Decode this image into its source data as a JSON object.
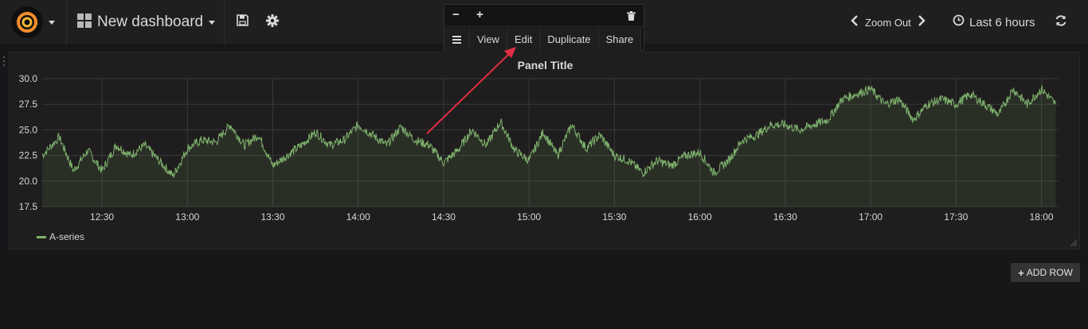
{
  "navbar": {
    "dashboard_title": "New dashboard",
    "zoom_label": "Zoom Out",
    "time_range": "Last 6 hours",
    "icons": {
      "logo": "grafana-logo-icon",
      "dashboard": "dashboard-grid-icon",
      "save": "save-icon",
      "settings": "gear-icon",
      "zoom_prev": "chevron-left-icon",
      "zoom_next": "chevron-right-icon",
      "clock": "clock-icon",
      "refresh": "refresh-icon"
    }
  },
  "panel_menu": {
    "collapse_glyph": "−",
    "expand_glyph": "+",
    "items": [
      "View",
      "Edit",
      "Duplicate",
      "Share"
    ]
  },
  "panel": {
    "title": "Panel Title",
    "legend": "A-series"
  },
  "add_row_label": "ADD ROW",
  "colors": {
    "series": "#7eb26d",
    "annotation_arrow": "#e02f44",
    "background": "#161719",
    "panel_bg": "#1f1d1d"
  },
  "chart_data": {
    "type": "area",
    "y_ticks": [
      "30.0",
      "27.5",
      "25.0",
      "22.5",
      "20.0",
      "17.5"
    ],
    "ylim": [
      17.5,
      30.0
    ],
    "x_ticks": [
      "12:30",
      "13:00",
      "13:30",
      "14:00",
      "14:30",
      "15:00",
      "15:30",
      "16:00",
      "16:30",
      "17:00",
      "17:30",
      "18:00"
    ],
    "x_range_minutes": [
      12.15,
      18.1
    ],
    "grid": true,
    "legend_position": "bottom-left",
    "series": [
      {
        "name": "A-series",
        "x": [
          "12:09",
          "12:15",
          "12:20",
          "12:25",
          "12:30",
          "12:35",
          "12:40",
          "12:45",
          "12:50",
          "12:55",
          "13:00",
          "13:05",
          "13:10",
          "13:15",
          "13:20",
          "13:25",
          "13:30",
          "13:35",
          "13:40",
          "13:45",
          "13:50",
          "13:55",
          "14:00",
          "14:05",
          "14:10",
          "14:15",
          "14:20",
          "14:25",
          "14:30",
          "14:35",
          "14:40",
          "14:45",
          "14:50",
          "14:55",
          "15:00",
          "15:05",
          "15:10",
          "15:15",
          "15:20",
          "15:25",
          "15:30",
          "15:35",
          "15:40",
          "15:45",
          "15:50",
          "15:55",
          "16:00",
          "16:05",
          "16:10",
          "16:15",
          "16:20",
          "16:25",
          "16:30",
          "16:35",
          "16:40",
          "16:45",
          "16:50",
          "16:55",
          "17:00",
          "17:05",
          "17:10",
          "17:15",
          "17:20",
          "17:25",
          "17:30",
          "17:35",
          "17:40",
          "17:45",
          "17:50",
          "17:55",
          "18:00",
          "18:05"
        ],
        "values": [
          22.5,
          24.3,
          21.0,
          23.0,
          21.0,
          23.5,
          22.5,
          23.5,
          22.0,
          20.5,
          23.2,
          24.0,
          23.8,
          25.5,
          23.5,
          24.5,
          21.5,
          22.5,
          23.5,
          24.8,
          23.5,
          24.0,
          25.5,
          24.5,
          23.5,
          25.3,
          24.0,
          23.5,
          21.8,
          23.0,
          25.0,
          23.5,
          25.8,
          23.0,
          22.0,
          24.8,
          22.5,
          25.5,
          23.2,
          24.5,
          22.5,
          22.0,
          20.8,
          22.0,
          21.5,
          22.5,
          22.8,
          20.8,
          22.0,
          24.0,
          24.5,
          25.5,
          25.5,
          25.0,
          25.5,
          26.0,
          28.0,
          28.5,
          29.0,
          27.5,
          28.0,
          26.0,
          27.5,
          28.0,
          27.5,
          28.5,
          27.5,
          26.5,
          29.0,
          27.5,
          29.0,
          27.5
        ]
      }
    ]
  }
}
